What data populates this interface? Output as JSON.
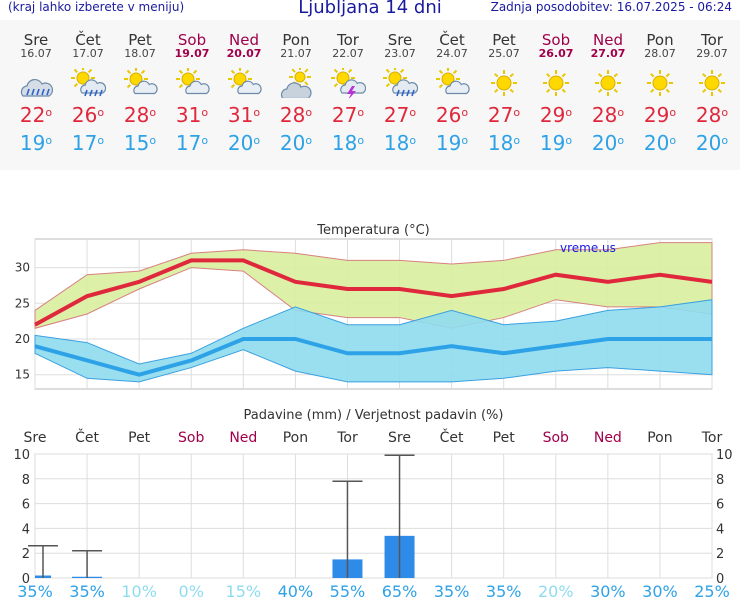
{
  "header": {
    "menu_hint": "(kraj lahko izberete v meniju)",
    "title": "Ljubljana 14 dni",
    "updated": "Zadnja posodobitev: 16.07.2025 - 06:24"
  },
  "days": [
    {
      "name": "Sre",
      "date": "16.07",
      "weekend": false,
      "icon": "rain-shower-cloud-icon",
      "tmax": "22",
      "tmin": "19"
    },
    {
      "name": "Čet",
      "date": "17.07",
      "weekend": false,
      "icon": "sun-cloud-rain-icon",
      "tmax": "26",
      "tmin": "17"
    },
    {
      "name": "Pet",
      "date": "18.07",
      "weekend": false,
      "icon": "sun-cloud-icon",
      "tmax": "28",
      "tmin": "15"
    },
    {
      "name": "Sob",
      "date": "19.07",
      "weekend": true,
      "icon": "sun-cloud-icon",
      "tmax": "31",
      "tmin": "17"
    },
    {
      "name": "Ned",
      "date": "20.07",
      "weekend": true,
      "icon": "sun-cloud-icon",
      "tmax": "31",
      "tmin": "20"
    },
    {
      "name": "Pon",
      "date": "21.07",
      "weekend": false,
      "icon": "sun-behind-cloud-icon",
      "tmax": "28",
      "tmin": "20"
    },
    {
      "name": "Tor",
      "date": "22.07",
      "weekend": false,
      "icon": "sun-thunderstorm-icon",
      "tmax": "27",
      "tmin": "18"
    },
    {
      "name": "Sre",
      "date": "23.07",
      "weekend": false,
      "icon": "sun-cloud-rain-icon",
      "tmax": "27",
      "tmin": "18"
    },
    {
      "name": "Čet",
      "date": "24.07",
      "weekend": false,
      "icon": "sun-cloud-icon",
      "tmax": "26",
      "tmin": "19"
    },
    {
      "name": "Pet",
      "date": "25.07",
      "weekend": false,
      "icon": "sun-icon",
      "tmax": "27",
      "tmin": "18"
    },
    {
      "name": "Sob",
      "date": "26.07",
      "weekend": true,
      "icon": "sun-icon",
      "tmax": "29",
      "tmin": "19"
    },
    {
      "name": "Ned",
      "date": "27.07",
      "weekend": true,
      "icon": "sun-icon",
      "tmax": "28",
      "tmin": "20"
    },
    {
      "name": "Pon",
      "date": "28.07",
      "weekend": false,
      "icon": "sun-icon",
      "tmax": "29",
      "tmin": "20"
    },
    {
      "name": "Tor",
      "date": "29.07",
      "weekend": false,
      "icon": "sun-icon",
      "tmax": "28",
      "tmin": "20"
    }
  ],
  "degree_symbol": "o",
  "colors": {
    "max": "#e0283c",
    "min": "#2ea2e6",
    "max_band": "#d8ee9e",
    "min_band": "#8fdcee",
    "precip_bar": "#2f8be8",
    "pct_dark": "#2ea2e6",
    "pct_light": "#8fdcee"
  },
  "chart_data": [
    {
      "type": "line",
      "title": "Temperatura (oC)",
      "watermark": "vreme.us",
      "categories": [
        "Sre",
        "Čet",
        "Pet",
        "Sob",
        "Ned",
        "Pon",
        "Tor",
        "Sre",
        "Čet",
        "Pet",
        "Sob",
        "Ned",
        "Pon",
        "Tor"
      ],
      "series": [
        {
          "values": [
            22,
            26,
            28,
            31,
            31,
            28,
            27,
            27,
            26,
            27,
            29,
            28,
            29,
            28
          ]
        },
        {
          "values": [
            19,
            17,
            15,
            17,
            20,
            20,
            18,
            18,
            19,
            18,
            19,
            20,
            20,
            20
          ]
        },
        {
          "values": [
            24,
            29,
            29.5,
            32,
            32.5,
            32,
            31,
            31,
            30.5,
            31,
            32.5,
            32.5,
            33.5,
            33.5
          ]
        },
        {
          "values": [
            21.5,
            23.5,
            27,
            30,
            29.5,
            24,
            23,
            23,
            21.5,
            23,
            25.5,
            24.5,
            24.5,
            23.5
          ]
        },
        {
          "values": [
            20.5,
            19.5,
            16.5,
            18,
            21.5,
            24.5,
            22,
            22,
            24,
            22,
            22.5,
            24,
            24.5,
            25.5
          ]
        },
        {
          "values": [
            18,
            14.5,
            14,
            16,
            18.5,
            15.5,
            14,
            14,
            14,
            14.5,
            15.5,
            16,
            15.5,
            15
          ]
        }
      ],
      "yticks": [
        15,
        20,
        25,
        30
      ],
      "ylim": [
        13,
        34
      ]
    },
    {
      "type": "bar",
      "title": "Padavine (mm) / Verjetnost padavin (%)",
      "categories": [
        "Sre",
        "Čet",
        "Pet",
        "Sob",
        "Ned",
        "Pon",
        "Tor",
        "Sre",
        "Čet",
        "Pet",
        "Sob",
        "Ned",
        "Pon",
        "Tor"
      ],
      "weekend": [
        false,
        false,
        false,
        true,
        true,
        false,
        false,
        false,
        false,
        false,
        true,
        true,
        false,
        false
      ],
      "values": [
        0.2,
        0.1,
        0,
        0,
        0,
        0,
        1.5,
        3.4,
        0,
        0,
        0,
        0,
        0,
        0
      ],
      "max_values": [
        2.6,
        2.2,
        0,
        0,
        0,
        0,
        7.8,
        9.9,
        0,
        0,
        0,
        0,
        0,
        0
      ],
      "probability": [
        "35%",
        "35%",
        "10%",
        "0%",
        "15%",
        "40%",
        "55%",
        "65%",
        "35%",
        "35%",
        "20%",
        "30%",
        "30%",
        "25%"
      ],
      "probability_high": [
        true,
        true,
        false,
        false,
        false,
        true,
        true,
        true,
        true,
        true,
        false,
        true,
        true,
        true
      ],
      "yticks": [
        0,
        2,
        4,
        6,
        8,
        10
      ],
      "ylim": [
        0,
        10
      ]
    }
  ]
}
